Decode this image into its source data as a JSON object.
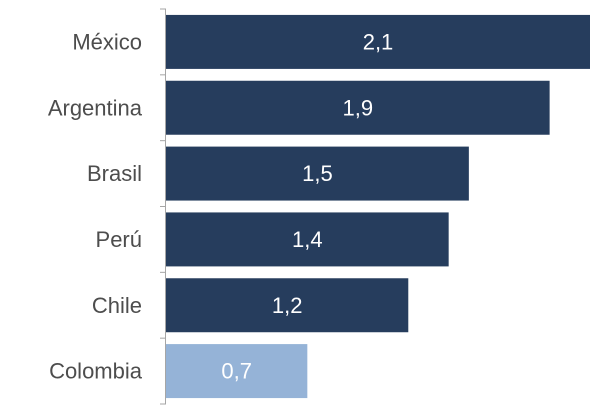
{
  "chart_data": {
    "type": "bar",
    "orientation": "horizontal",
    "title": "",
    "xlabel": "",
    "ylabel": "",
    "categories": [
      "México",
      "Argentina",
      "Brasil",
      "Perú",
      "Chile",
      "Colombia"
    ],
    "values": [
      2.1,
      1.9,
      1.5,
      1.4,
      1.2,
      0.7
    ],
    "value_labels": [
      "2,1",
      "1,9",
      "1,5",
      "1,4",
      "1,2",
      "0,7"
    ],
    "xlim": [
      0,
      2.1
    ],
    "grid": false,
    "legend": "none",
    "bar_colors": [
      "#263d5d",
      "#263d5d",
      "#263d5d",
      "#263d5d",
      "#263d5d",
      "#95b3d7"
    ],
    "highlighted_category": "Colombia"
  }
}
